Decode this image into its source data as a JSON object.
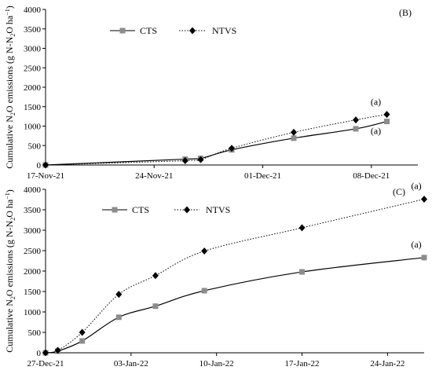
{
  "chart_data": [
    {
      "type": "line",
      "panel_label": "(B)",
      "ylabel": "Cumulative N₂O emissions  (g N-N₂O ha⁻¹)",
      "ylabel_parts": [
        "Cumulative N",
        "2",
        "O emissions  (g N-N",
        "2",
        "O ha",
        "−1",
        ")"
      ],
      "ylim": [
        0,
        4000
      ],
      "yticks": [
        0,
        500,
        1000,
        1500,
        2000,
        2500,
        3000,
        3500,
        4000
      ],
      "xlim": [
        "2021-11-17",
        "2021-12-11"
      ],
      "xticks": [
        {
          "date": "2021-11-17",
          "label": "17-Nov-21"
        },
        {
          "date": "2021-11-24",
          "label": "24-Nov-21"
        },
        {
          "date": "2021-12-01",
          "label": "01-Dec-21"
        },
        {
          "date": "2021-12-08",
          "label": "08-Dec-21"
        }
      ],
      "legend_position": "top-left",
      "series": [
        {
          "name": "CTS",
          "color": "#8c8c8c",
          "line": "solid",
          "marker": "square",
          "x": [
            "2021-11-17",
            "2021-11-26",
            "2021-11-27",
            "2021-11-29",
            "2021-12-03",
            "2021-12-07",
            "2021-12-09"
          ],
          "values": [
            0,
            150,
            170,
            390,
            690,
            930,
            1120
          ],
          "annotation": "(a)"
        },
        {
          "name": "NTVS",
          "color": "#000000",
          "line": "dotted",
          "marker": "diamond",
          "x": [
            "2021-11-17",
            "2021-11-26",
            "2021-11-27",
            "2021-11-29",
            "2021-12-03",
            "2021-12-07",
            "2021-12-09"
          ],
          "values": [
            0,
            110,
            140,
            430,
            840,
            1160,
            1300
          ],
          "annotation": "(a)"
        }
      ]
    },
    {
      "type": "line",
      "panel_label": "(C)",
      "ylabel": "Cumulative N₂O emissions (g N-N₂O ha⁻¹)",
      "ylabel_parts": [
        "Cumulative N",
        "2",
        "O emissions (g N-N",
        "2",
        "O ha",
        "−1",
        ")"
      ],
      "ylim": [
        0,
        4000
      ],
      "yticks": [
        0,
        500,
        1000,
        1500,
        2000,
        2500,
        3000,
        3500,
        4000
      ],
      "xlim": [
        "2021-12-27",
        "2022-01-27"
      ],
      "xticks": [
        {
          "date": "2021-12-27",
          "label": "27-Dec-21"
        },
        {
          "date": "2022-01-03",
          "label": "03-Jan-22"
        },
        {
          "date": "2022-01-10",
          "label": "10-Jan-22"
        },
        {
          "date": "2022-01-17",
          "label": "17-Jan-22"
        },
        {
          "date": "2022-01-24",
          "label": "24-Jan-22"
        }
      ],
      "legend_position": "top-left",
      "series": [
        {
          "name": "CTS",
          "color": "#8c8c8c",
          "line": "solid",
          "marker": "square",
          "x": [
            "2021-12-27",
            "2021-12-28",
            "2021-12-30",
            "2022-01-02",
            "2022-01-05",
            "2022-01-09",
            "2022-01-17",
            "2022-01-27"
          ],
          "values": [
            0,
            40,
            290,
            870,
            1140,
            1520,
            1980,
            2330
          ],
          "annotation": "(a)"
        },
        {
          "name": "NTVS",
          "color": "#000000",
          "line": "dotted",
          "marker": "diamond",
          "x": [
            "2021-12-27",
            "2021-12-28",
            "2021-12-30",
            "2022-01-02",
            "2022-01-05",
            "2022-01-09",
            "2022-01-17",
            "2022-01-27"
          ],
          "values": [
            0,
            60,
            500,
            1430,
            1890,
            2490,
            3060,
            3760
          ],
          "annotation": "(a)"
        }
      ]
    }
  ]
}
